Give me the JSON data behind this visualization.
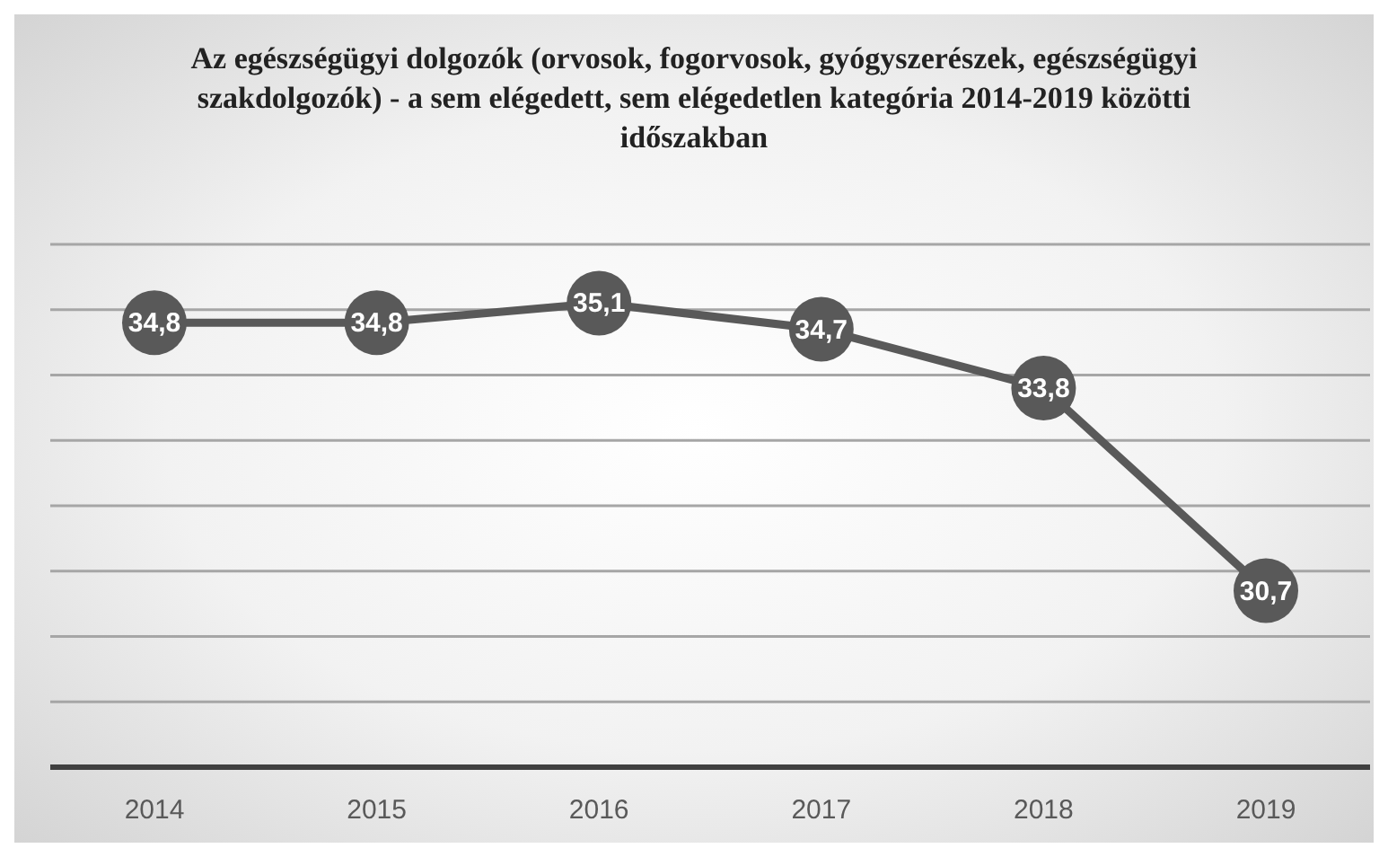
{
  "chart_data": {
    "type": "line",
    "title": "Az egészségügyi dolgozók (orvosok, fogorvosok, gyógyszerészek, egészségügyi szakdolgozók) - a sem elégedett, sem elégedetlen kategória 2014-2019 közötti időszakban",
    "categories": [
      "2014",
      "2015",
      "2016",
      "2017",
      "2018",
      "2019"
    ],
    "series": [
      {
        "color": "#595959",
        "values": [
          34.8,
          34.8,
          35.1,
          34.7,
          33.8,
          30.7
        ],
        "value_labels": [
          "34,8",
          "34,8",
          "35,1",
          "34,7",
          "33,8",
          "30,7"
        ]
      }
    ],
    "ylim": [
      28,
      36
    ],
    "yticks": [
      {
        "value": 28,
        "label": null
      },
      {
        "value": 29,
        "label": null
      },
      {
        "value": 30,
        "label": null
      },
      {
        "value": 31,
        "label": null
      },
      {
        "value": 32,
        "label": null
      },
      {
        "value": 33,
        "label": null
      },
      {
        "value": 34,
        "label": null
      },
      {
        "value": 35,
        "label": null
      },
      {
        "value": 36,
        "label": null
      }
    ],
    "grid": "y",
    "marker": "circle",
    "line_style": "solid",
    "legend": false,
    "tick_labels": "x"
  }
}
